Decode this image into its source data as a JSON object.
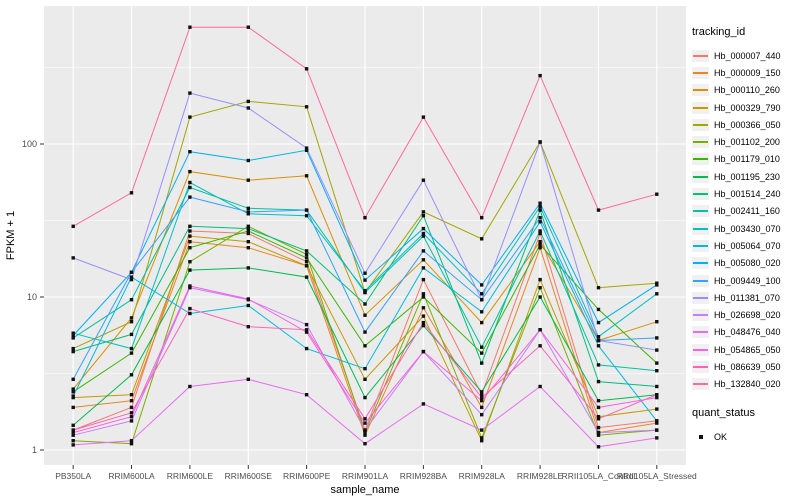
{
  "chart_data": {
    "type": "line",
    "title": "",
    "xlabel": "sample_name",
    "ylabel": "FPKM + 1",
    "y_scale": "log10",
    "ylim": [
      0.8,
      950
    ],
    "y_ticks": [
      1,
      10,
      100
    ],
    "y_tick_labels": [
      "1",
      "10",
      "100"
    ],
    "grid": true,
    "legend_position": "right",
    "legend_title": "tracking_id",
    "point_shape": "filled-black-square",
    "panel_color": "#EBEBEB",
    "gridline_color": "#FFFFFF",
    "point_color": "#111111",
    "tick_label_color": "#4D4D4D",
    "categories": [
      "PB350LA",
      "RRIM600LA",
      "RRIM600LE",
      "RRIM600SE",
      "RRIM600PE",
      "RRIM901LA",
      "RRIM928BA",
      "RRIM928LA",
      "RRIM928LE",
      "RRII105LA_Control",
      "RRII105LA_Stressed"
    ],
    "series": [
      {
        "name": "Hb_000007_440",
        "color": "#F8766D",
        "values": [
          1.35,
          1.9,
          27,
          26,
          17,
          1.35,
          13,
          2.3,
          26,
          1.4,
          1.55
        ]
      },
      {
        "name": "Hb_000009_150",
        "color": "#E88526",
        "values": [
          1.9,
          2.1,
          23,
          21,
          16,
          1.25,
          8.5,
          1.9,
          21,
          1.3,
          1.5
        ]
      },
      {
        "name": "Hb_000110_260",
        "color": "#D89000",
        "values": [
          2.5,
          7.3,
          66,
          58,
          62,
          7.6,
          17.5,
          6.8,
          23,
          5.2,
          6.9
        ]
      },
      {
        "name": "Hb_000329_790",
        "color": "#C49A00",
        "values": [
          2.2,
          2.3,
          25,
          23,
          16,
          2.9,
          7.5,
          1.15,
          13,
          1.65,
          1.85
        ]
      },
      {
        "name": "Hb_000366_050",
        "color": "#A3A500",
        "values": [
          4.6,
          6.9,
          150,
          190,
          175,
          10.7,
          36,
          24,
          103,
          11.5,
          12.3
        ]
      },
      {
        "name": "Hb_001102_200",
        "color": "#7CAE00",
        "values": [
          1.15,
          1.1,
          17,
          29,
          19,
          1.3,
          10.5,
          1.2,
          11.5,
          1.25,
          1.35
        ]
      },
      {
        "name": "Hb_001179_010",
        "color": "#39B600",
        "values": [
          2.4,
          4.3,
          21,
          27,
          18,
          4.8,
          10,
          4.3,
          22,
          8.3,
          3.7
        ]
      },
      {
        "name": "Hb_001195_230",
        "color": "#00BB4E",
        "values": [
          1.45,
          3.1,
          15,
          15.5,
          13.5,
          2.2,
          6.5,
          2.4,
          10,
          2.1,
          2.3
        ]
      },
      {
        "name": "Hb_001514_240",
        "color": "#00BF7D",
        "values": [
          4.4,
          5.7,
          29,
          28,
          20,
          9,
          34,
          3.7,
          37,
          2.8,
          2.6
        ]
      },
      {
        "name": "Hb_002411_160",
        "color": "#00C1A3",
        "values": [
          5.4,
          9.6,
          52,
          38,
          37,
          10.7,
          25,
          4.7,
          27,
          3.6,
          3.3
        ]
      },
      {
        "name": "Hb_003430_070",
        "color": "#00BFC4",
        "values": [
          5.8,
          4.6,
          56,
          35,
          34,
          11,
          26,
          10.5,
          39,
          5.5,
          10.5
        ]
      },
      {
        "name": "Hb_005064_070",
        "color": "#00BAE0",
        "values": [
          2.25,
          13.5,
          7.8,
          8.8,
          4.6,
          3.4,
          15.5,
          8,
          31,
          4.8,
          1.55
        ]
      },
      {
        "name": "Hb_005080_020",
        "color": "#00B0F6",
        "values": [
          5.6,
          14.5,
          89,
          78,
          91,
          12.9,
          28,
          12,
          41,
          6.8,
          12
        ]
      },
      {
        "name": "Hb_009449_100",
        "color": "#35A2FF",
        "values": [
          2.9,
          14.5,
          45,
          36,
          37,
          5.9,
          20,
          9.6,
          33,
          5.2,
          5.4
        ]
      },
      {
        "name": "Hb_011381_070",
        "color": "#9590FF",
        "values": [
          18,
          13,
          215,
          172,
          94,
          14.3,
          58,
          9.6,
          103,
          5.2,
          4.5
        ]
      },
      {
        "name": "Hb_026698_020",
        "color": "#C77CFF",
        "values": [
          1.25,
          1.55,
          11.5,
          9.6,
          6.6,
          1.35,
          4.4,
          1.7,
          6.1,
          1.3,
          1.35
        ]
      },
      {
        "name": "Hb_048476_040",
        "color": "#E76BF3",
        "values": [
          1.08,
          1.15,
          2.6,
          2.9,
          2.3,
          1.1,
          2,
          1.35,
          2.6,
          1.05,
          1.2
        ]
      },
      {
        "name": "Hb_054865_050",
        "color": "#FA62DB",
        "values": [
          1.3,
          1.65,
          11.8,
          9.7,
          5.9,
          1.5,
          4.4,
          2.1,
          6.1,
          1.9,
          2.2
        ]
      },
      {
        "name": "Hb_086639_050",
        "color": "#FF62BC",
        "values": [
          1.35,
          1.75,
          8.4,
          6.4,
          6.1,
          1.6,
          6.8,
          2.2,
          4.8,
          1.6,
          2.3
        ]
      },
      {
        "name": "Hb_132840_020",
        "color": "#FF6A98",
        "values": [
          29,
          48,
          580,
          580,
          310,
          33,
          150,
          33,
          280,
          37,
          47
        ]
      }
    ],
    "quant_status": {
      "title": "quant_status",
      "items": [
        "OK"
      ]
    }
  }
}
